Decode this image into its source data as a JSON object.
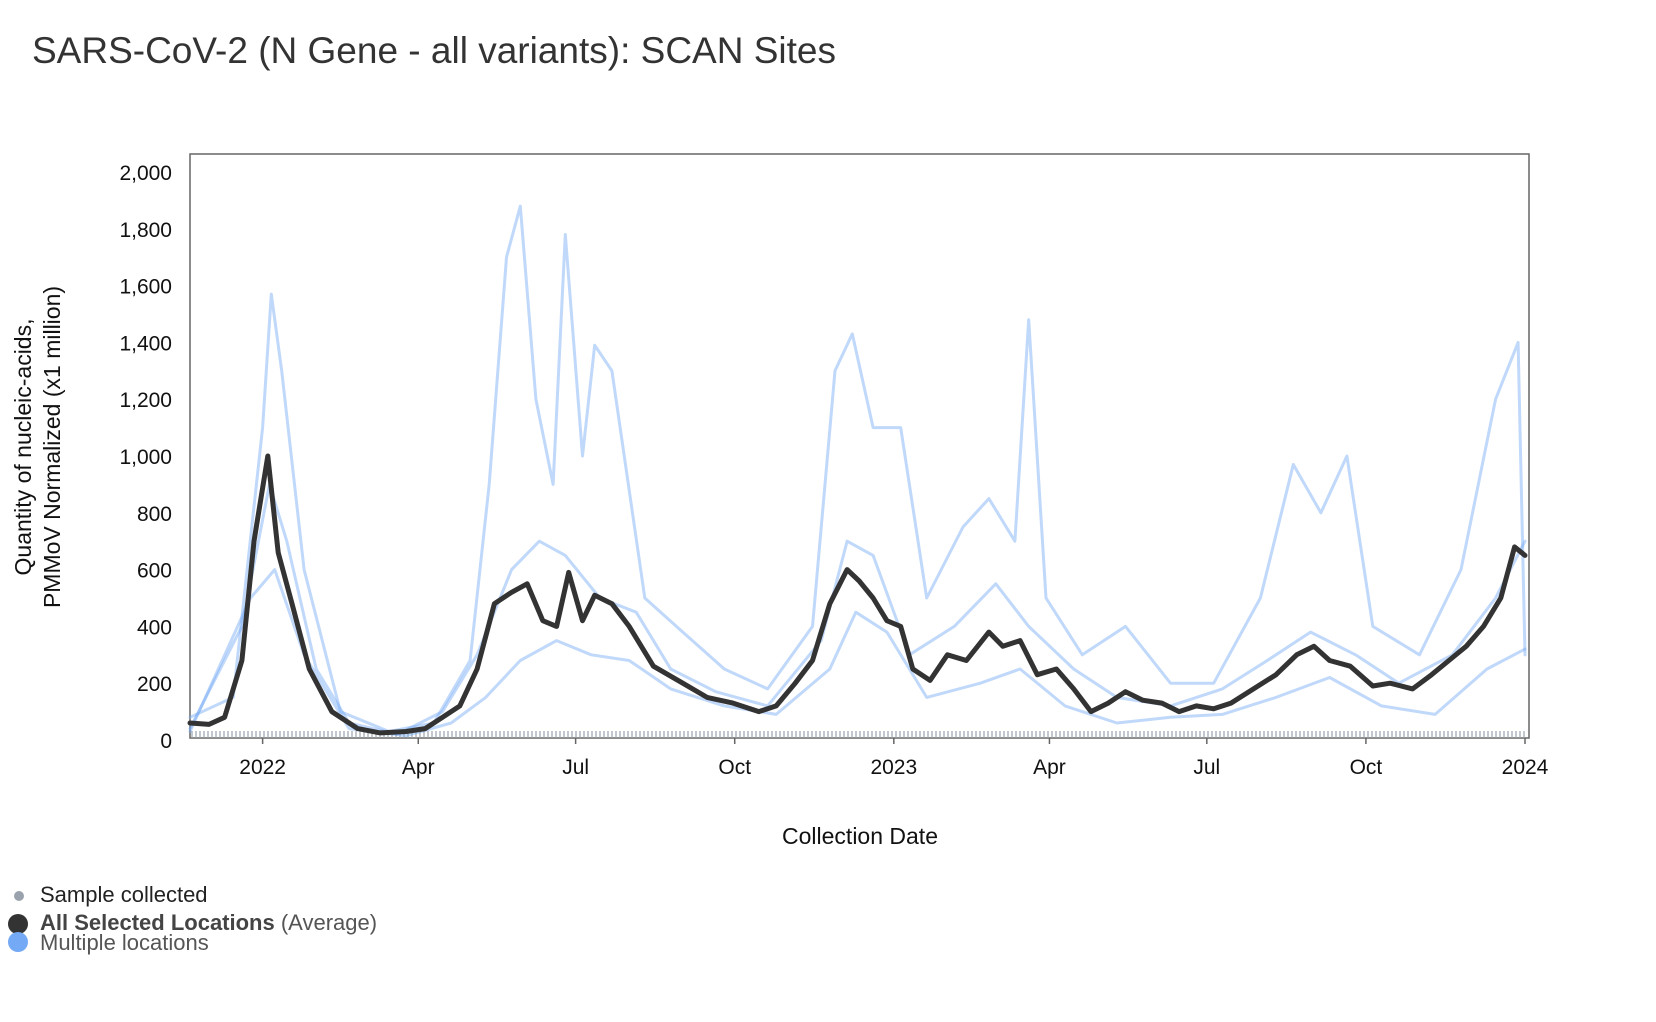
{
  "title": "SARS-CoV-2 (N Gene - all variants): SCAN Sites",
  "chart_data": {
    "type": "line",
    "title": "SARS-CoV-2 (N Gene - all variants): SCAN Sites",
    "xlabel": "Collection Date",
    "ylabel_line1": "Quantity of nucleic-acids,",
    "ylabel_line2": "PMMoV Normalized (x1 million)",
    "ylim": [
      0,
      2000
    ],
    "xlim": [
      "2021-11-20",
      "2024-01-01"
    ],
    "y_ticks": [
      0,
      200,
      400,
      600,
      800,
      1000,
      1200,
      1400,
      1600,
      1800,
      2000
    ],
    "y_tick_labels": [
      "0",
      "200",
      "400",
      "600",
      "800",
      "1,000",
      "1,200",
      "1,400",
      "1,600",
      "1,800",
      "2,000"
    ],
    "x_ticks": [
      {
        "date": "2022-01-01",
        "label": "2022"
      },
      {
        "date": "2022-04-01",
        "label": "Apr"
      },
      {
        "date": "2022-07-01",
        "label": "Jul"
      },
      {
        "date": "2022-10-01",
        "label": "Oct"
      },
      {
        "date": "2023-01-01",
        "label": "2023"
      },
      {
        "date": "2023-04-01",
        "label": "Apr"
      },
      {
        "date": "2023-07-01",
        "label": "Jul"
      },
      {
        "date": "2023-10-01",
        "label": "Oct"
      },
      {
        "date": "2024-01-01",
        "label": "2024"
      }
    ],
    "grid": false,
    "series": [
      {
        "name": "All Selected Locations (Average)",
        "color": "#333333",
        "points": [
          [
            "2021-11-20",
            60
          ],
          [
            "2021-12-01",
            55
          ],
          [
            "2021-12-10",
            80
          ],
          [
            "2021-12-20",
            280
          ],
          [
            "2021-12-27",
            700
          ],
          [
            "2022-01-04",
            1000
          ],
          [
            "2022-01-10",
            660
          ],
          [
            "2022-01-18",
            480
          ],
          [
            "2022-01-28",
            250
          ],
          [
            "2022-02-10",
            100
          ],
          [
            "2022-02-25",
            40
          ],
          [
            "2022-03-10",
            25
          ],
          [
            "2022-03-25",
            30
          ],
          [
            "2022-04-05",
            40
          ],
          [
            "2022-04-15",
            80
          ],
          [
            "2022-04-25",
            120
          ],
          [
            "2022-05-05",
            250
          ],
          [
            "2022-05-15",
            480
          ],
          [
            "2022-05-25",
            520
          ],
          [
            "2022-06-03",
            550
          ],
          [
            "2022-06-12",
            420
          ],
          [
            "2022-06-20",
            400
          ],
          [
            "2022-06-27",
            590
          ],
          [
            "2022-07-05",
            420
          ],
          [
            "2022-07-12",
            510
          ],
          [
            "2022-07-22",
            480
          ],
          [
            "2022-08-01",
            400
          ],
          [
            "2022-08-15",
            260
          ],
          [
            "2022-09-01",
            200
          ],
          [
            "2022-09-15",
            150
          ],
          [
            "2022-09-30",
            130
          ],
          [
            "2022-10-15",
            100
          ],
          [
            "2022-10-25",
            120
          ],
          [
            "2022-11-05",
            200
          ],
          [
            "2022-11-15",
            280
          ],
          [
            "2022-11-25",
            480
          ],
          [
            "2022-12-05",
            600
          ],
          [
            "2022-12-12",
            560
          ],
          [
            "2022-12-20",
            500
          ],
          [
            "2022-12-28",
            420
          ],
          [
            "2023-01-05",
            400
          ],
          [
            "2023-01-12",
            250
          ],
          [
            "2023-01-22",
            210
          ],
          [
            "2023-02-01",
            300
          ],
          [
            "2023-02-12",
            280
          ],
          [
            "2023-02-25",
            380
          ],
          [
            "2023-03-05",
            330
          ],
          [
            "2023-03-15",
            350
          ],
          [
            "2023-03-25",
            230
          ],
          [
            "2023-04-05",
            250
          ],
          [
            "2023-04-15",
            180
          ],
          [
            "2023-04-25",
            100
          ],
          [
            "2023-05-05",
            130
          ],
          [
            "2023-05-15",
            170
          ],
          [
            "2023-05-25",
            140
          ],
          [
            "2023-06-05",
            130
          ],
          [
            "2023-06-15",
            100
          ],
          [
            "2023-06-25",
            120
          ],
          [
            "2023-07-05",
            110
          ],
          [
            "2023-07-15",
            130
          ],
          [
            "2023-07-28",
            180
          ],
          [
            "2023-08-10",
            230
          ],
          [
            "2023-08-22",
            300
          ],
          [
            "2023-09-01",
            330
          ],
          [
            "2023-09-10",
            280
          ],
          [
            "2023-09-22",
            260
          ],
          [
            "2023-10-05",
            190
          ],
          [
            "2023-10-15",
            200
          ],
          [
            "2023-10-28",
            180
          ],
          [
            "2023-11-08",
            230
          ],
          [
            "2023-11-18",
            280
          ],
          [
            "2023-11-28",
            330
          ],
          [
            "2023-12-08",
            400
          ],
          [
            "2023-12-18",
            500
          ],
          [
            "2023-12-26",
            680
          ],
          [
            "2024-01-01",
            650
          ]
        ]
      },
      {
        "name": "",
        "color": "#74a9f5",
        "points": [
          [
            "2021-11-20",
            80
          ],
          [
            "2021-12-15",
            150
          ],
          [
            "2022-01-01",
            1100
          ],
          [
            "2022-01-06",
            1570
          ],
          [
            "2022-01-12",
            1300
          ],
          [
            "2022-01-25",
            600
          ],
          [
            "2022-02-15",
            100
          ],
          [
            "2022-03-15",
            30
          ],
          [
            "2022-04-10",
            60
          ],
          [
            "2022-05-01",
            280
          ],
          [
            "2022-05-12",
            900
          ],
          [
            "2022-05-22",
            1700
          ],
          [
            "2022-05-30",
            1880
          ],
          [
            "2022-06-08",
            1200
          ],
          [
            "2022-06-18",
            900
          ],
          [
            "2022-06-25",
            1780
          ],
          [
            "2022-07-05",
            1000
          ],
          [
            "2022-07-12",
            1390
          ],
          [
            "2022-07-22",
            1300
          ],
          [
            "2022-08-10",
            500
          ],
          [
            "2022-09-01",
            380
          ],
          [
            "2022-09-25",
            250
          ],
          [
            "2022-10-20",
            180
          ],
          [
            "2022-11-15",
            400
          ],
          [
            "2022-11-28",
            1300
          ],
          [
            "2022-12-08",
            1430
          ],
          [
            "2022-12-20",
            1100
          ],
          [
            "2023-01-05",
            1100
          ],
          [
            "2023-01-20",
            500
          ],
          [
            "2023-02-10",
            750
          ],
          [
            "2023-02-25",
            850
          ],
          [
            "2023-03-12",
            700
          ],
          [
            "2023-03-20",
            1480
          ],
          [
            "2023-03-30",
            500
          ],
          [
            "2023-04-20",
            300
          ],
          [
            "2023-05-15",
            400
          ],
          [
            "2023-06-10",
            200
          ],
          [
            "2023-07-05",
            200
          ],
          [
            "2023-08-01",
            500
          ],
          [
            "2023-08-20",
            970
          ],
          [
            "2023-09-05",
            800
          ],
          [
            "2023-09-20",
            1000
          ],
          [
            "2023-10-05",
            400
          ],
          [
            "2023-11-01",
            300
          ],
          [
            "2023-11-25",
            600
          ],
          [
            "2023-12-15",
            1200
          ],
          [
            "2023-12-28",
            1400
          ],
          [
            "2024-01-01",
            300
          ]
        ]
      },
      {
        "name": "",
        "color": "#74a9f5",
        "points": [
          [
            "2021-11-20",
            40
          ],
          [
            "2021-12-20",
            400
          ],
          [
            "2022-01-05",
            900
          ],
          [
            "2022-01-15",
            700
          ],
          [
            "2022-02-01",
            250
          ],
          [
            "2022-02-20",
            60
          ],
          [
            "2022-03-20",
            20
          ],
          [
            "2022-04-15",
            100
          ],
          [
            "2022-05-05",
            300
          ],
          [
            "2022-05-25",
            600
          ],
          [
            "2022-06-10",
            700
          ],
          [
            "2022-06-25",
            650
          ],
          [
            "2022-07-15",
            500
          ],
          [
            "2022-08-05",
            450
          ],
          [
            "2022-08-25",
            250
          ],
          [
            "2022-09-20",
            170
          ],
          [
            "2022-10-20",
            120
          ],
          [
            "2022-11-20",
            350
          ],
          [
            "2022-12-05",
            700
          ],
          [
            "2022-12-20",
            650
          ],
          [
            "2023-01-10",
            300
          ],
          [
            "2023-02-05",
            400
          ],
          [
            "2023-03-01",
            550
          ],
          [
            "2023-03-20",
            400
          ],
          [
            "2023-04-15",
            250
          ],
          [
            "2023-05-10",
            150
          ],
          [
            "2023-06-10",
            120
          ],
          [
            "2023-07-10",
            180
          ],
          [
            "2023-08-05",
            280
          ],
          [
            "2023-08-30",
            380
          ],
          [
            "2023-09-25",
            300
          ],
          [
            "2023-10-20",
            200
          ],
          [
            "2023-11-20",
            300
          ],
          [
            "2023-12-15",
            500
          ],
          [
            "2024-01-01",
            700
          ]
        ]
      },
      {
        "name": "",
        "color": "#74a9f5",
        "points": [
          [
            "2021-11-20",
            30
          ],
          [
            "2021-12-25",
            500
          ],
          [
            "2022-01-08",
            600
          ],
          [
            "2022-01-25",
            300
          ],
          [
            "2022-02-20",
            40
          ],
          [
            "2022-03-25",
            15
          ],
          [
            "2022-04-20",
            60
          ],
          [
            "2022-05-10",
            150
          ],
          [
            "2022-05-30",
            280
          ],
          [
            "2022-06-20",
            350
          ],
          [
            "2022-07-10",
            300
          ],
          [
            "2022-08-01",
            280
          ],
          [
            "2022-08-25",
            180
          ],
          [
            "2022-09-25",
            120
          ],
          [
            "2022-10-25",
            90
          ],
          [
            "2022-11-25",
            250
          ],
          [
            "2022-12-10",
            450
          ],
          [
            "2022-12-28",
            380
          ],
          [
            "2023-01-20",
            150
          ],
          [
            "2023-02-20",
            200
          ],
          [
            "2023-03-15",
            250
          ],
          [
            "2023-04-10",
            120
          ],
          [
            "2023-05-10",
            60
          ],
          [
            "2023-06-10",
            80
          ],
          [
            "2023-07-10",
            90
          ],
          [
            "2023-08-10",
            150
          ],
          [
            "2023-09-10",
            220
          ],
          [
            "2023-10-10",
            120
          ],
          [
            "2023-11-10",
            90
          ],
          [
            "2023-12-10",
            250
          ],
          [
            "2024-01-01",
            320
          ]
        ]
      }
    ],
    "sample_markers": "Sample collected"
  },
  "legend": {
    "sample": "Sample collected",
    "avg_bold": "All Selected Locations",
    "avg_rest": "(Average)",
    "multi": "Multiple locations"
  }
}
